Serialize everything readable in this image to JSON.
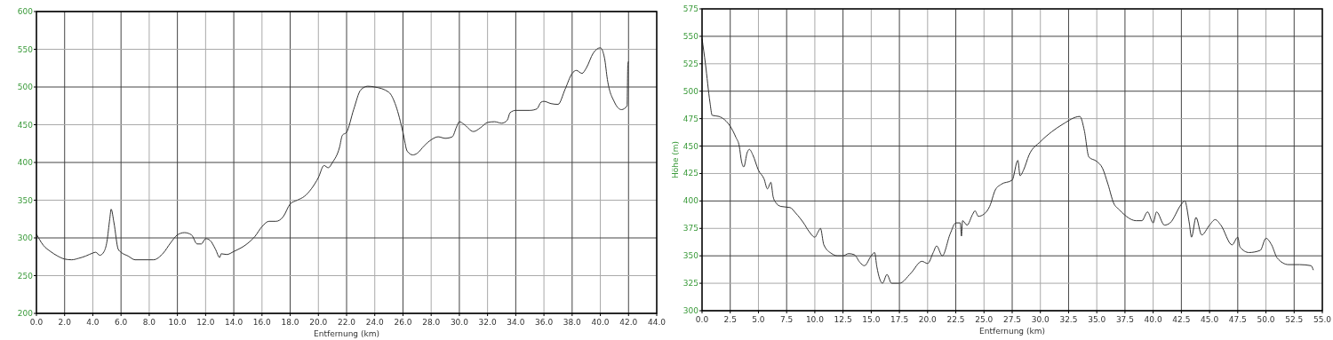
{
  "chart_data": [
    {
      "type": "line",
      "xlabel": "Entfernung (km)",
      "xlim": [
        0,
        44
      ],
      "ylim": [
        200,
        600
      ],
      "grid": true,
      "marker": "none",
      "line_style": "solid",
      "xticks": [
        {
          "value": 0,
          "label": "0.0"
        },
        {
          "value": 2,
          "label": "2.0"
        },
        {
          "value": 4,
          "label": "4.0"
        },
        {
          "value": 6,
          "label": "6.0"
        },
        {
          "value": 8,
          "label": "8.0"
        },
        {
          "value": 10,
          "label": "10.0"
        },
        {
          "value": 12,
          "label": "12.0"
        },
        {
          "value": 14,
          "label": "14.0"
        },
        {
          "value": 16,
          "label": "16.0"
        },
        {
          "value": 18,
          "label": "18.0"
        },
        {
          "value": 20,
          "label": "20.0"
        },
        {
          "value": 22,
          "label": "22.0"
        },
        {
          "value": 24,
          "label": "24.0"
        },
        {
          "value": 26,
          "label": "26.0"
        },
        {
          "value": 28,
          "label": "28.0"
        },
        {
          "value": 30,
          "label": "30.0"
        },
        {
          "value": 32,
          "label": "32.0"
        },
        {
          "value": 34,
          "label": "34.0"
        },
        {
          "value": 36,
          "label": "36.0"
        },
        {
          "value": 38,
          "label": "38.0"
        },
        {
          "value": 40,
          "label": "40.0"
        },
        {
          "value": 42,
          "label": "42.0"
        },
        {
          "value": 44,
          "label": "44.0"
        }
      ],
      "yticks": [
        200,
        250,
        300,
        350,
        400,
        450,
        500,
        550,
        600
      ],
      "series": [
        {
          "color": "#333333",
          "x": [
            0,
            0.5,
            1,
            1.5,
            2,
            2.5,
            3,
            3.5,
            4,
            4.2,
            4.5,
            4.8,
            5,
            5.2,
            5.3,
            5.5,
            5.8,
            6,
            6.5,
            7,
            8,
            8.3,
            9,
            9.5,
            10,
            10.5,
            11,
            11.4,
            11.7,
            12,
            12.3,
            12.7,
            13,
            13.1,
            13.5,
            14,
            15,
            15.5,
            16,
            16.5,
            17,
            17.5,
            18,
            18.5,
            19,
            19.5,
            20,
            20.4,
            20.7,
            21,
            21.5,
            21.7,
            22,
            22.5,
            23,
            23.5,
            24,
            25,
            25.5,
            26,
            26.3,
            26.7,
            27,
            27.5,
            28,
            28.5,
            29,
            29.5,
            29.8,
            30,
            30.3,
            31,
            31.5,
            32,
            32.5,
            33,
            33.4,
            33.6,
            34,
            35,
            35.5,
            35.8,
            36,
            36.5,
            37,
            37.5,
            38,
            38.3,
            38.7,
            39,
            39.5,
            40,
            40.3,
            40.5,
            41,
            41.5,
            41.9,
            41.95,
            42
          ],
          "values": [
            305,
            290,
            282,
            276,
            272,
            271,
            273,
            276,
            280,
            281,
            277,
            282,
            295,
            325,
            338,
            320,
            285,
            281,
            276,
            271,
            271,
            271,
            280,
            293,
            304,
            307,
            304,
            292,
            292,
            299,
            297,
            285,
            274,
            279,
            278,
            282,
            293,
            302,
            315,
            322,
            322,
            328,
            345,
            350,
            355,
            365,
            380,
            396,
            393,
            400,
            420,
            436,
            440,
            470,
            496,
            501,
            500,
            493,
            475,
            440,
            415,
            410,
            412,
            422,
            430,
            434,
            432,
            434,
            447,
            454,
            451,
            441,
            446,
            453,
            454,
            452,
            456,
            466,
            469,
            469,
            471,
            480,
            481,
            478,
            477,
            497,
            518,
            522,
            518,
            525,
            545,
            552,
            538,
            510,
            480,
            470,
            475,
            530,
            534
          ]
        }
      ]
    },
    {
      "type": "line",
      "xlabel": "Entfernung (km)",
      "ylabel": "Höhe (m)",
      "xlim": [
        0,
        55
      ],
      "ylim": [
        300,
        575
      ],
      "grid": true,
      "marker": "none",
      "line_style": "solid",
      "xticks": [
        {
          "value": 0,
          "label": "0.0"
        },
        2.5,
        {
          "value": 5,
          "label": "5.0"
        },
        7.5,
        {
          "value": 10,
          "label": "10.0"
        },
        12.5,
        {
          "value": 15,
          "label": "15.0"
        },
        17.5,
        {
          "value": 20,
          "label": "20.0"
        },
        22.5,
        {
          "value": 25,
          "label": "25.0"
        },
        27.5,
        {
          "value": 30,
          "label": "30.0"
        },
        32.5,
        {
          "value": 35,
          "label": "35.0"
        },
        37.5,
        {
          "value": 40,
          "label": "40.0"
        },
        42.5,
        {
          "value": 45,
          "label": "45.0"
        },
        47.5,
        {
          "value": 50,
          "label": "50.0"
        },
        52.5,
        {
          "value": 55,
          "label": "55.0"
        }
      ],
      "yticks": [
        300,
        325,
        350,
        375,
        400,
        425,
        450,
        475,
        500,
        525,
        550,
        575
      ],
      "series": [
        {
          "color": "#333333",
          "x": [
            0,
            0.3,
            0.7,
            0.9,
            1.5,
            2,
            2.5,
            3,
            3.3,
            3.5,
            3.7,
            4,
            4.2,
            4.5,
            5,
            5.5,
            5.8,
            6.1,
            6.3,
            6.5,
            7,
            7.8,
            8.3,
            9,
            9.5,
            10,
            10.3,
            10.5,
            10.8,
            11.5,
            12,
            12.5,
            13,
            13.5,
            14,
            14.4,
            15,
            15.3,
            15.5,
            16,
            16.4,
            16.8,
            17.5,
            18.5,
            19.5,
            20,
            20.5,
            20.8,
            21.3,
            22,
            22.5,
            22.9,
            23,
            23.1,
            23.5,
            24,
            24.2,
            24.5,
            25,
            25.5,
            26,
            26.5,
            27.5,
            28,
            28.2,
            28.5,
            29,
            30,
            31,
            32,
            33.5,
            33.9,
            34.3,
            35,
            35.5,
            36,
            36.5,
            37,
            37.5,
            38.5,
            39,
            39.5,
            40,
            40.3,
            41,
            41.5,
            42.5,
            42.8,
            43.2,
            43.4,
            43.8,
            44.3,
            45,
            45.5,
            46,
            47,
            47.5,
            47.7,
            48.5,
            49.5,
            50,
            50.5,
            51,
            52,
            53,
            54,
            54.2
          ],
          "values": [
            548,
            525,
            490,
            478,
            477,
            474,
            468,
            458,
            450,
            436,
            431,
            444,
            447,
            442,
            428,
            420,
            411,
            417,
            404,
            399,
            395,
            394,
            389,
            380,
            372,
            367,
            372,
            375,
            360,
            352,
            350,
            350,
            352,
            351,
            344,
            341,
            350,
            353,
            340,
            325,
            333,
            325,
            325,
            334,
            345,
            343,
            353,
            359,
            350,
            370,
            380,
            380,
            368,
            382,
            378,
            388,
            391,
            386,
            388,
            395,
            410,
            415,
            419,
            437,
            423,
            428,
            442,
            454,
            463,
            470,
            477,
            464,
            440,
            436,
            430,
            415,
            398,
            392,
            387,
            382,
            382,
            390,
            380,
            390,
            378,
            380,
            397,
            400,
            380,
            367,
            385,
            369,
            378,
            383,
            378,
            360,
            367,
            358,
            353,
            355,
            366,
            360,
            348,
            342,
            342,
            341,
            337
          ]
        }
      ]
    }
  ]
}
